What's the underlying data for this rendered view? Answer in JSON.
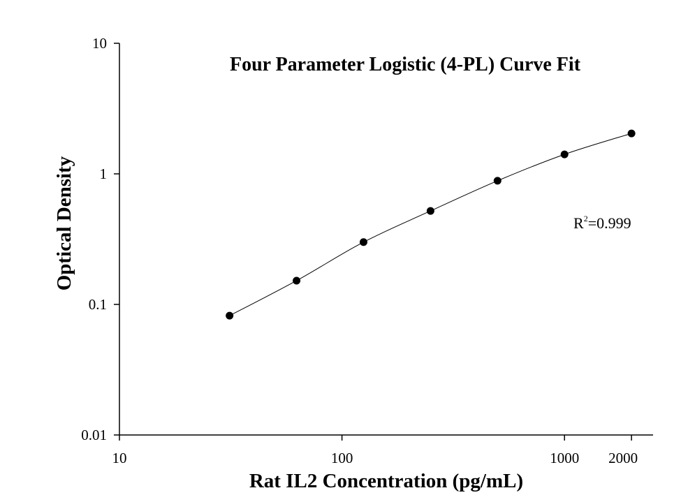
{
  "chart_data": {
    "type": "scatter",
    "title": "Four Parameter Logistic (4-PL) Curve Fit",
    "x_label": "Rat IL2 Concentration (pg/mL)",
    "y_label": "Optical Density",
    "annotation": {
      "base": "R",
      "sup": "2",
      "rest": "=0.999"
    },
    "x_scale": "log",
    "y_scale": "log",
    "xlim": [
      10,
      2500
    ],
    "ylim": [
      0.01,
      10
    ],
    "xticks": [
      10,
      100,
      1000,
      2000
    ],
    "yticks": [
      0.01,
      0.1,
      1,
      10
    ],
    "curve": true,
    "series": [
      {
        "color": "#000000",
        "x": [
          31.25,
          62.5,
          125,
          250,
          500,
          1000,
          2000
        ],
        "values": [
          0.082,
          0.152,
          0.3,
          0.52,
          0.885,
          1.41,
          2.04
        ]
      }
    ]
  }
}
